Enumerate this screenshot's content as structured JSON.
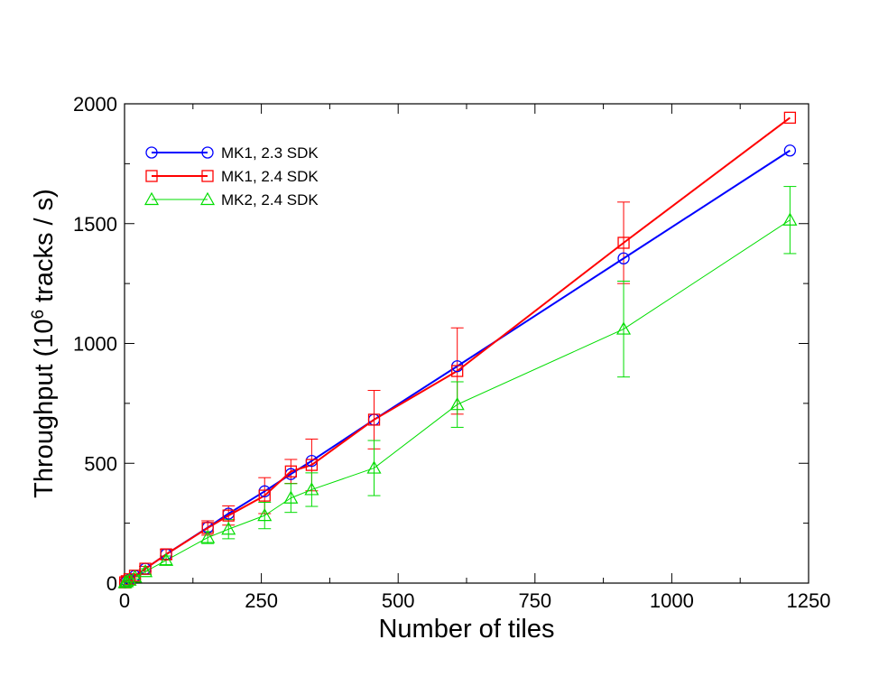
{
  "chart_data": {
    "type": "line",
    "title": "",
    "xlabel": "Number of tiles",
    "ylabel": {
      "prefix": "Throughput (10",
      "exponent": "6",
      "suffix": " tracks / s)"
    },
    "xlim": [
      0,
      1250
    ],
    "ylim": [
      0,
      2000
    ],
    "xticks": [
      0,
      250,
      500,
      750,
      1000,
      1250
    ],
    "yticks": [
      0,
      500,
      1000,
      1500,
      2000
    ],
    "x_minor_step": 125,
    "y_minor_step": 250,
    "grid": false,
    "legend_position": "top-left",
    "series": [
      {
        "name": "MK1, 2.3 SDK",
        "color": "#0000ff",
        "marker": "circle",
        "line_width": "thick",
        "points": [
          {
            "x": 1,
            "y": 3,
            "err": 0
          },
          {
            "x": 4,
            "y": 8,
            "err": 0
          },
          {
            "x": 9,
            "y": 15,
            "err": 0
          },
          {
            "x": 19,
            "y": 30,
            "err": 0
          },
          {
            "x": 38,
            "y": 60,
            "err": 0
          },
          {
            "x": 76,
            "y": 120,
            "err": 0
          },
          {
            "x": 152,
            "y": 232,
            "err": 0
          },
          {
            "x": 190,
            "y": 290,
            "err": 0
          },
          {
            "x": 256,
            "y": 383,
            "err": 0
          },
          {
            "x": 304,
            "y": 455,
            "err": 0
          },
          {
            "x": 342,
            "y": 510,
            "err": 0
          },
          {
            "x": 456,
            "y": 682,
            "err": 0
          },
          {
            "x": 608,
            "y": 905,
            "err": 0
          },
          {
            "x": 912,
            "y": 1355,
            "err": 0
          },
          {
            "x": 1216,
            "y": 1805,
            "err": 0
          }
        ]
      },
      {
        "name": "MK1, 2.4 SDK",
        "color": "#ff0000",
        "marker": "square",
        "line_width": "thick",
        "points": [
          {
            "x": 1,
            "y": 3,
            "err": 0
          },
          {
            "x": 4,
            "y": 8,
            "err": 0
          },
          {
            "x": 9,
            "y": 16,
            "err": 0
          },
          {
            "x": 19,
            "y": 31,
            "err": 5
          },
          {
            "x": 38,
            "y": 60,
            "err": 10
          },
          {
            "x": 76,
            "y": 120,
            "err": 20
          },
          {
            "x": 152,
            "y": 230,
            "err": 30
          },
          {
            "x": 190,
            "y": 282,
            "err": 40
          },
          {
            "x": 256,
            "y": 365,
            "err": 75
          },
          {
            "x": 304,
            "y": 466,
            "err": 50
          },
          {
            "x": 342,
            "y": 493,
            "err": 108
          },
          {
            "x": 456,
            "y": 682,
            "err": 122
          },
          {
            "x": 608,
            "y": 885,
            "err": 180
          },
          {
            "x": 912,
            "y": 1420,
            "err": 170
          },
          {
            "x": 1216,
            "y": 1942,
            "err": 0
          }
        ]
      },
      {
        "name": "MK2, 2.4 SDK",
        "color": "#00dd00",
        "marker": "triangle",
        "line_width": "thin",
        "points": [
          {
            "x": 1,
            "y": 2,
            "err": 0
          },
          {
            "x": 4,
            "y": 6,
            "err": 0
          },
          {
            "x": 9,
            "y": 12,
            "err": 4
          },
          {
            "x": 19,
            "y": 25,
            "err": 8
          },
          {
            "x": 38,
            "y": 48,
            "err": 12
          },
          {
            "x": 76,
            "y": 95,
            "err": 18
          },
          {
            "x": 152,
            "y": 190,
            "err": 25
          },
          {
            "x": 190,
            "y": 225,
            "err": 40
          },
          {
            "x": 256,
            "y": 282,
            "err": 55
          },
          {
            "x": 304,
            "y": 355,
            "err": 60
          },
          {
            "x": 342,
            "y": 390,
            "err": 70
          },
          {
            "x": 456,
            "y": 480,
            "err": 115
          },
          {
            "x": 608,
            "y": 745,
            "err": 95
          },
          {
            "x": 912,
            "y": 1060,
            "err": 200
          },
          {
            "x": 1216,
            "y": 1515,
            "err": 140
          }
        ]
      }
    ]
  }
}
